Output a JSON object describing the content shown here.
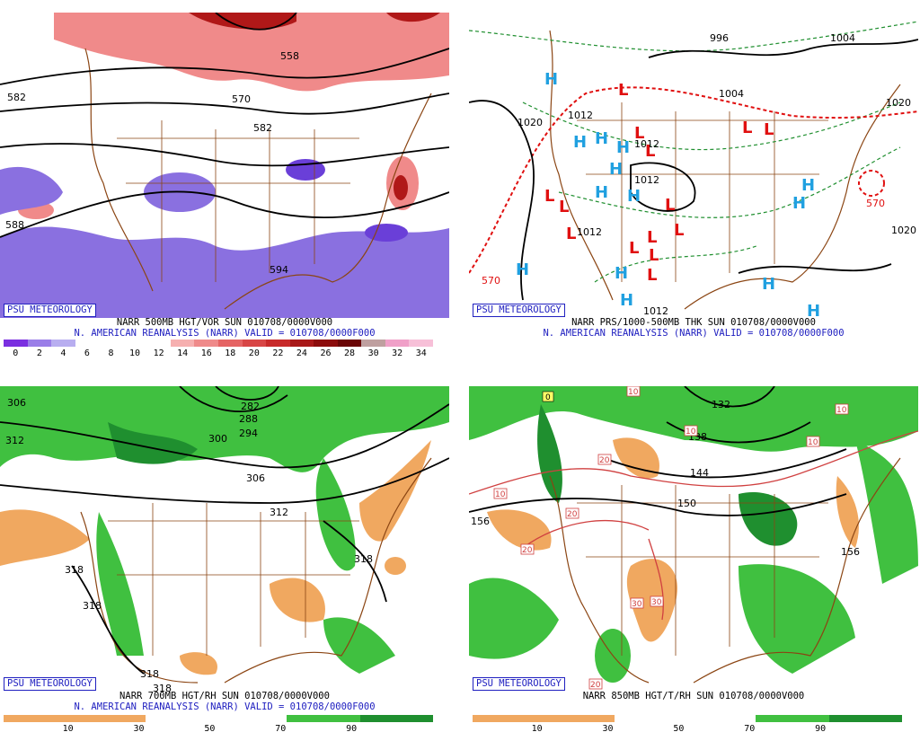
{
  "branding": {
    "badge": "PSU METEOROLOGY"
  },
  "panels": {
    "vorticity": {
      "title": "NARR 500MB HGT/VOR SUN 010708/0000V000",
      "subtitle": "N. AMERICAN REANALYSIS (NARR) VALID = 010708/0000F000",
      "contour_labels": [
        "582",
        "570",
        "558",
        "582",
        "588",
        "594"
      ],
      "colorbar": {
        "ticks": [
          "0",
          "2",
          "4",
          "6",
          "8",
          "10",
          "12",
          "14",
          "16",
          "18",
          "20",
          "22",
          "24",
          "26",
          "28",
          "30",
          "32",
          "34"
        ],
        "colors": [
          "#7a2fe0",
          "#9a7ee8",
          "#b8aef0",
          "#ffffff",
          "#ffffff",
          "#ffffff",
          "#ffffff",
          "#f6b0b0",
          "#ef8a8a",
          "#e56464",
          "#d84646",
          "#c82a2a",
          "#a81818",
          "#8c0c0c",
          "#6a0606",
          "#bfa0a0",
          "#f0a0c8",
          "#f7c0d8"
        ]
      }
    },
    "pressure": {
      "title": "NARR PRS/1000-500MB THK SUN 010708/0000V000",
      "subtitle": "N. AMERICAN REANALYSIS (NARR) VALID = 010708/0000F000",
      "contour_labels": [
        "996",
        "1004",
        "1004",
        "1020",
        "1020",
        "1012",
        "1012",
        "1012",
        "1012",
        "1020",
        "1012",
        "570",
        "570"
      ],
      "high_symbol": "H",
      "low_symbol": "L"
    },
    "rh700": {
      "title": "NARR 700MB HGT/RH SUN 010708/0000V000",
      "subtitle": "N. AMERICAN REANALYSIS (NARR) VALID = 010708/0000F000",
      "contour_labels": [
        "306",
        "312",
        "282",
        "288",
        "294",
        "300",
        "306",
        "312",
        "318",
        "318",
        "318",
        "318",
        "318"
      ],
      "colorbar": {
        "ticks": [
          "10",
          "30",
          "50",
          "70",
          "90"
        ]
      }
    },
    "t850": {
      "title": "NARR 850MB HGT/T/RH SUN 010708/0000V000",
      "contour_labels": [
        "132",
        "138",
        "144",
        "150",
        "156",
        "156"
      ],
      "temp_labels": [
        "0",
        "10",
        "10",
        "10",
        "10",
        "10",
        "20",
        "20",
        "20",
        "30",
        "30",
        "20"
      ],
      "colorbar": {
        "ticks": [
          "10",
          "30",
          "50",
          "70",
          "90"
        ]
      }
    }
  },
  "colors": {
    "purple": "#8a70e0",
    "purple_dark": "#6a3fd8",
    "pink": "#f08a8a",
    "red_dark": "#b01818",
    "green": "#40c040",
    "green_dark": "#1f8f2f",
    "orange": "#f0a860",
    "brown": "#8b4513",
    "blue_h": "#20a0e0",
    "red_l": "#e01010"
  }
}
